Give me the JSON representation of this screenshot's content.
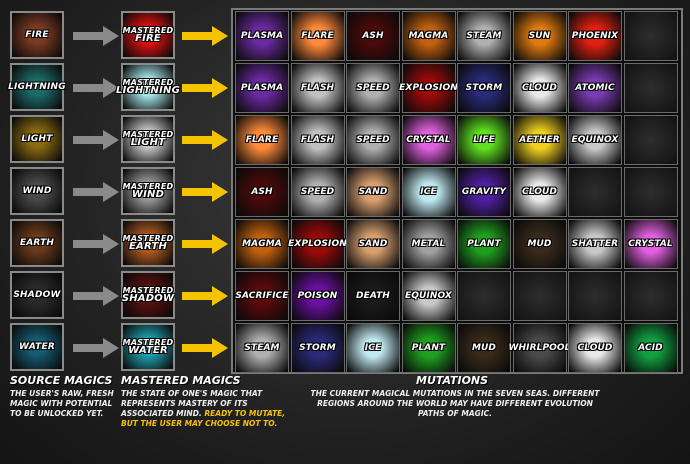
{
  "source": {
    "heading": "SOURCE MAGICS",
    "desc": "THE USER'S RAW, FRESH MAGIC WITH POTENTIAL TO BE UNLOCKED YET.",
    "items": [
      {
        "label": "FIRE",
        "color": "#7a3a22"
      },
      {
        "label": "LIGHTNING",
        "color": "#1c6a68"
      },
      {
        "label": "LIGHT",
        "color": "#8a6a10"
      },
      {
        "label": "WIND",
        "color": "#4a4a4a"
      },
      {
        "label": "EARTH",
        "color": "#6a3a1c"
      },
      {
        "label": "SHADOW",
        "color": "#2a2a2a"
      },
      {
        "label": "WATER",
        "color": "#145a70"
      }
    ]
  },
  "mastered": {
    "heading": "MASTERED MAGICS",
    "desc_main": "THE STATE OF ONE'S MAGIC THAT REPRESENTS MASTERY OF ITS ASSOCIATED MIND.",
    "desc_highlight": "READY TO MUTATE, BUT THE USER MAY CHOOSE NOT TO.",
    "prefix": "MASTERED",
    "items": [
      {
        "label": "FIRE",
        "color": "#e01010"
      },
      {
        "label": "LIGHTNING",
        "color": "#a8e8ea"
      },
      {
        "label": "LIGHT",
        "color": "#c8c8c8"
      },
      {
        "label": "WIND",
        "color": "#9a9a9a"
      },
      {
        "label": "EARTH",
        "color": "#b05a20"
      },
      {
        "label": "SHADOW",
        "color": "#5a1010"
      },
      {
        "label": "WATER",
        "color": "#20a0b0"
      }
    ]
  },
  "mutations": {
    "heading": "MUTATIONS",
    "desc": "THE CURRENT MAGICAL MUTATIONS IN THE SEVEN SEAS. DIFFERENT REGIONS AROUND THE WORLD MAY HAVE DIFFERENT EVOLUTION PATHS OF MAGIC.",
    "rows": [
      [
        {
          "l": "PLASMA",
          "c": "#6a2aa0"
        },
        {
          "l": "FLARE",
          "c": "#ff8a3a"
        },
        {
          "l": "ASH",
          "c": "#4a0a0a"
        },
        {
          "l": "MAGMA",
          "c": "#c06010"
        },
        {
          "l": "STEAM",
          "c": "#b0b0b0"
        },
        {
          "l": "SUN",
          "c": "#e07a10"
        },
        {
          "l": "PHOENIX",
          "c": "#e02010"
        },
        {
          "l": "",
          "c": "#2a2a2a"
        }
      ],
      [
        {
          "l": "PLASMA",
          "c": "#6a2aa0"
        },
        {
          "l": "FLASH",
          "c": "#c0c0c0"
        },
        {
          "l": "SPEED",
          "c": "#b0b0b0"
        },
        {
          "l": "EXPLOSION",
          "c": "#9a0a0a"
        },
        {
          "l": "STORM",
          "c": "#2a2a7a"
        },
        {
          "l": "CLOUD",
          "c": "#e8e8e8"
        },
        {
          "l": "ATOMIC",
          "c": "#7a3ab0"
        },
        {
          "l": "",
          "c": "#2a2a2a"
        }
      ],
      [
        {
          "l": "FLARE",
          "c": "#ff8a3a"
        },
        {
          "l": "FLASH",
          "c": "#c0c0c0"
        },
        {
          "l": "SPEED",
          "c": "#b0b0b0"
        },
        {
          "l": "CRYSTAL",
          "c": "#e060e0"
        },
        {
          "l": "LIFE",
          "c": "#60e020"
        },
        {
          "l": "AETHER",
          "c": "#f0d020"
        },
        {
          "l": "EQUINOX",
          "c": "#c8c8c8"
        },
        {
          "l": "",
          "c": "#2a2a2a"
        }
      ],
      [
        {
          "l": "ASH",
          "c": "#4a0a0a"
        },
        {
          "l": "SPEED",
          "c": "#b0b0b0"
        },
        {
          "l": "SAND",
          "c": "#d8a070"
        },
        {
          "l": "ICE",
          "c": "#c0e8f0"
        },
        {
          "l": "GRAVITY",
          "c": "#5020a0"
        },
        {
          "l": "CLOUD",
          "c": "#e8e8e8"
        },
        {
          "l": "",
          "c": "#2a2a2a"
        },
        {
          "l": "",
          "c": "#2a2a2a"
        }
      ],
      [
        {
          "l": "MAGMA",
          "c": "#c06010"
        },
        {
          "l": "EXPLOSION",
          "c": "#9a0a0a"
        },
        {
          "l": "SAND",
          "c": "#d8a070"
        },
        {
          "l": "METAL",
          "c": "#a0a0a0"
        },
        {
          "l": "PLANT",
          "c": "#20a020"
        },
        {
          "l": "MUD",
          "c": "#3a2a1a"
        },
        {
          "l": "SHATTER",
          "c": "#c8c8c8"
        },
        {
          "l": "CRYSTAL",
          "c": "#e060e0"
        }
      ],
      [
        {
          "l": "SACRIFICE",
          "c": "#5a0a0a"
        },
        {
          "l": "POISON",
          "c": "#6a10a0"
        },
        {
          "l": "DEATH",
          "c": "#1a1a1a"
        },
        {
          "l": "EQUINOX",
          "c": "#c8c8c8"
        },
        {
          "l": "",
          "c": "#2a2a2a"
        },
        {
          "l": "",
          "c": "#2a2a2a"
        },
        {
          "l": "",
          "c": "#2a2a2a"
        },
        {
          "l": "",
          "c": "#2a2a2a"
        }
      ],
      [
        {
          "l": "STEAM",
          "c": "#b0b0b0"
        },
        {
          "l": "STORM",
          "c": "#2a2a7a"
        },
        {
          "l": "ICE",
          "c": "#c0e8f0"
        },
        {
          "l": "PLANT",
          "c": "#20a020"
        },
        {
          "l": "MUD",
          "c": "#3a2a1a"
        },
        {
          "l": "WHIRLPOOL",
          "c": "#4a4a4a"
        },
        {
          "l": "CLOUD",
          "c": "#e8e8e8"
        },
        {
          "l": "ACID",
          "c": "#10a040"
        }
      ]
    ]
  },
  "colors": {
    "arrow_gray": "#8a8a8a",
    "arrow_gold": "#f5c400"
  }
}
